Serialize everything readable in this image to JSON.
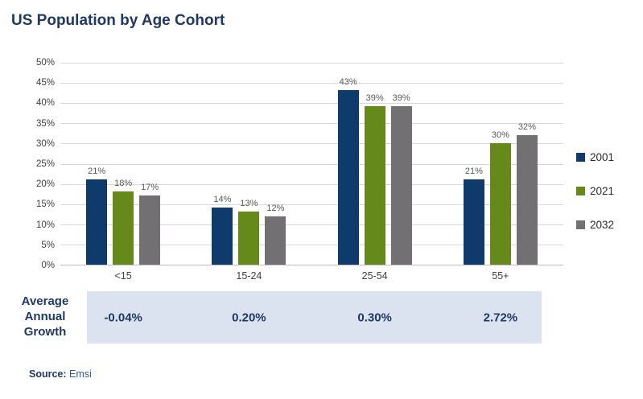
{
  "title": "US Population by Age Cohort",
  "source": {
    "label": "Source:",
    "value": "Emsi"
  },
  "chart_data": {
    "type": "bar",
    "title": "US Population by Age Cohort",
    "categories": [
      "<15",
      "15-24",
      "25-54",
      "55+"
    ],
    "series": [
      {
        "name": "2001",
        "color": "#0e3a6c",
        "values": [
          21,
          14,
          43,
          21
        ]
      },
      {
        "name": "2021",
        "color": "#66891c",
        "values": [
          18,
          13,
          39,
          30
        ]
      },
      {
        "name": "2032",
        "color": "#727072",
        "values": [
          17,
          12,
          39,
          32
        ]
      }
    ],
    "value_label_suffix": "%",
    "xlabel": "",
    "ylabel": "",
    "ylim": [
      0,
      50
    ],
    "yticks": [
      "0%",
      "5%",
      "10%",
      "15%",
      "20%",
      "25%",
      "30%",
      "35%",
      "40%",
      "45%",
      "50%"
    ],
    "grid": true,
    "legend_position": "right",
    "annotation_row": {
      "label": "Average Annual Growth",
      "values": [
        "-0.04%",
        "0.20%",
        "0.30%",
        "2.72%"
      ]
    }
  }
}
